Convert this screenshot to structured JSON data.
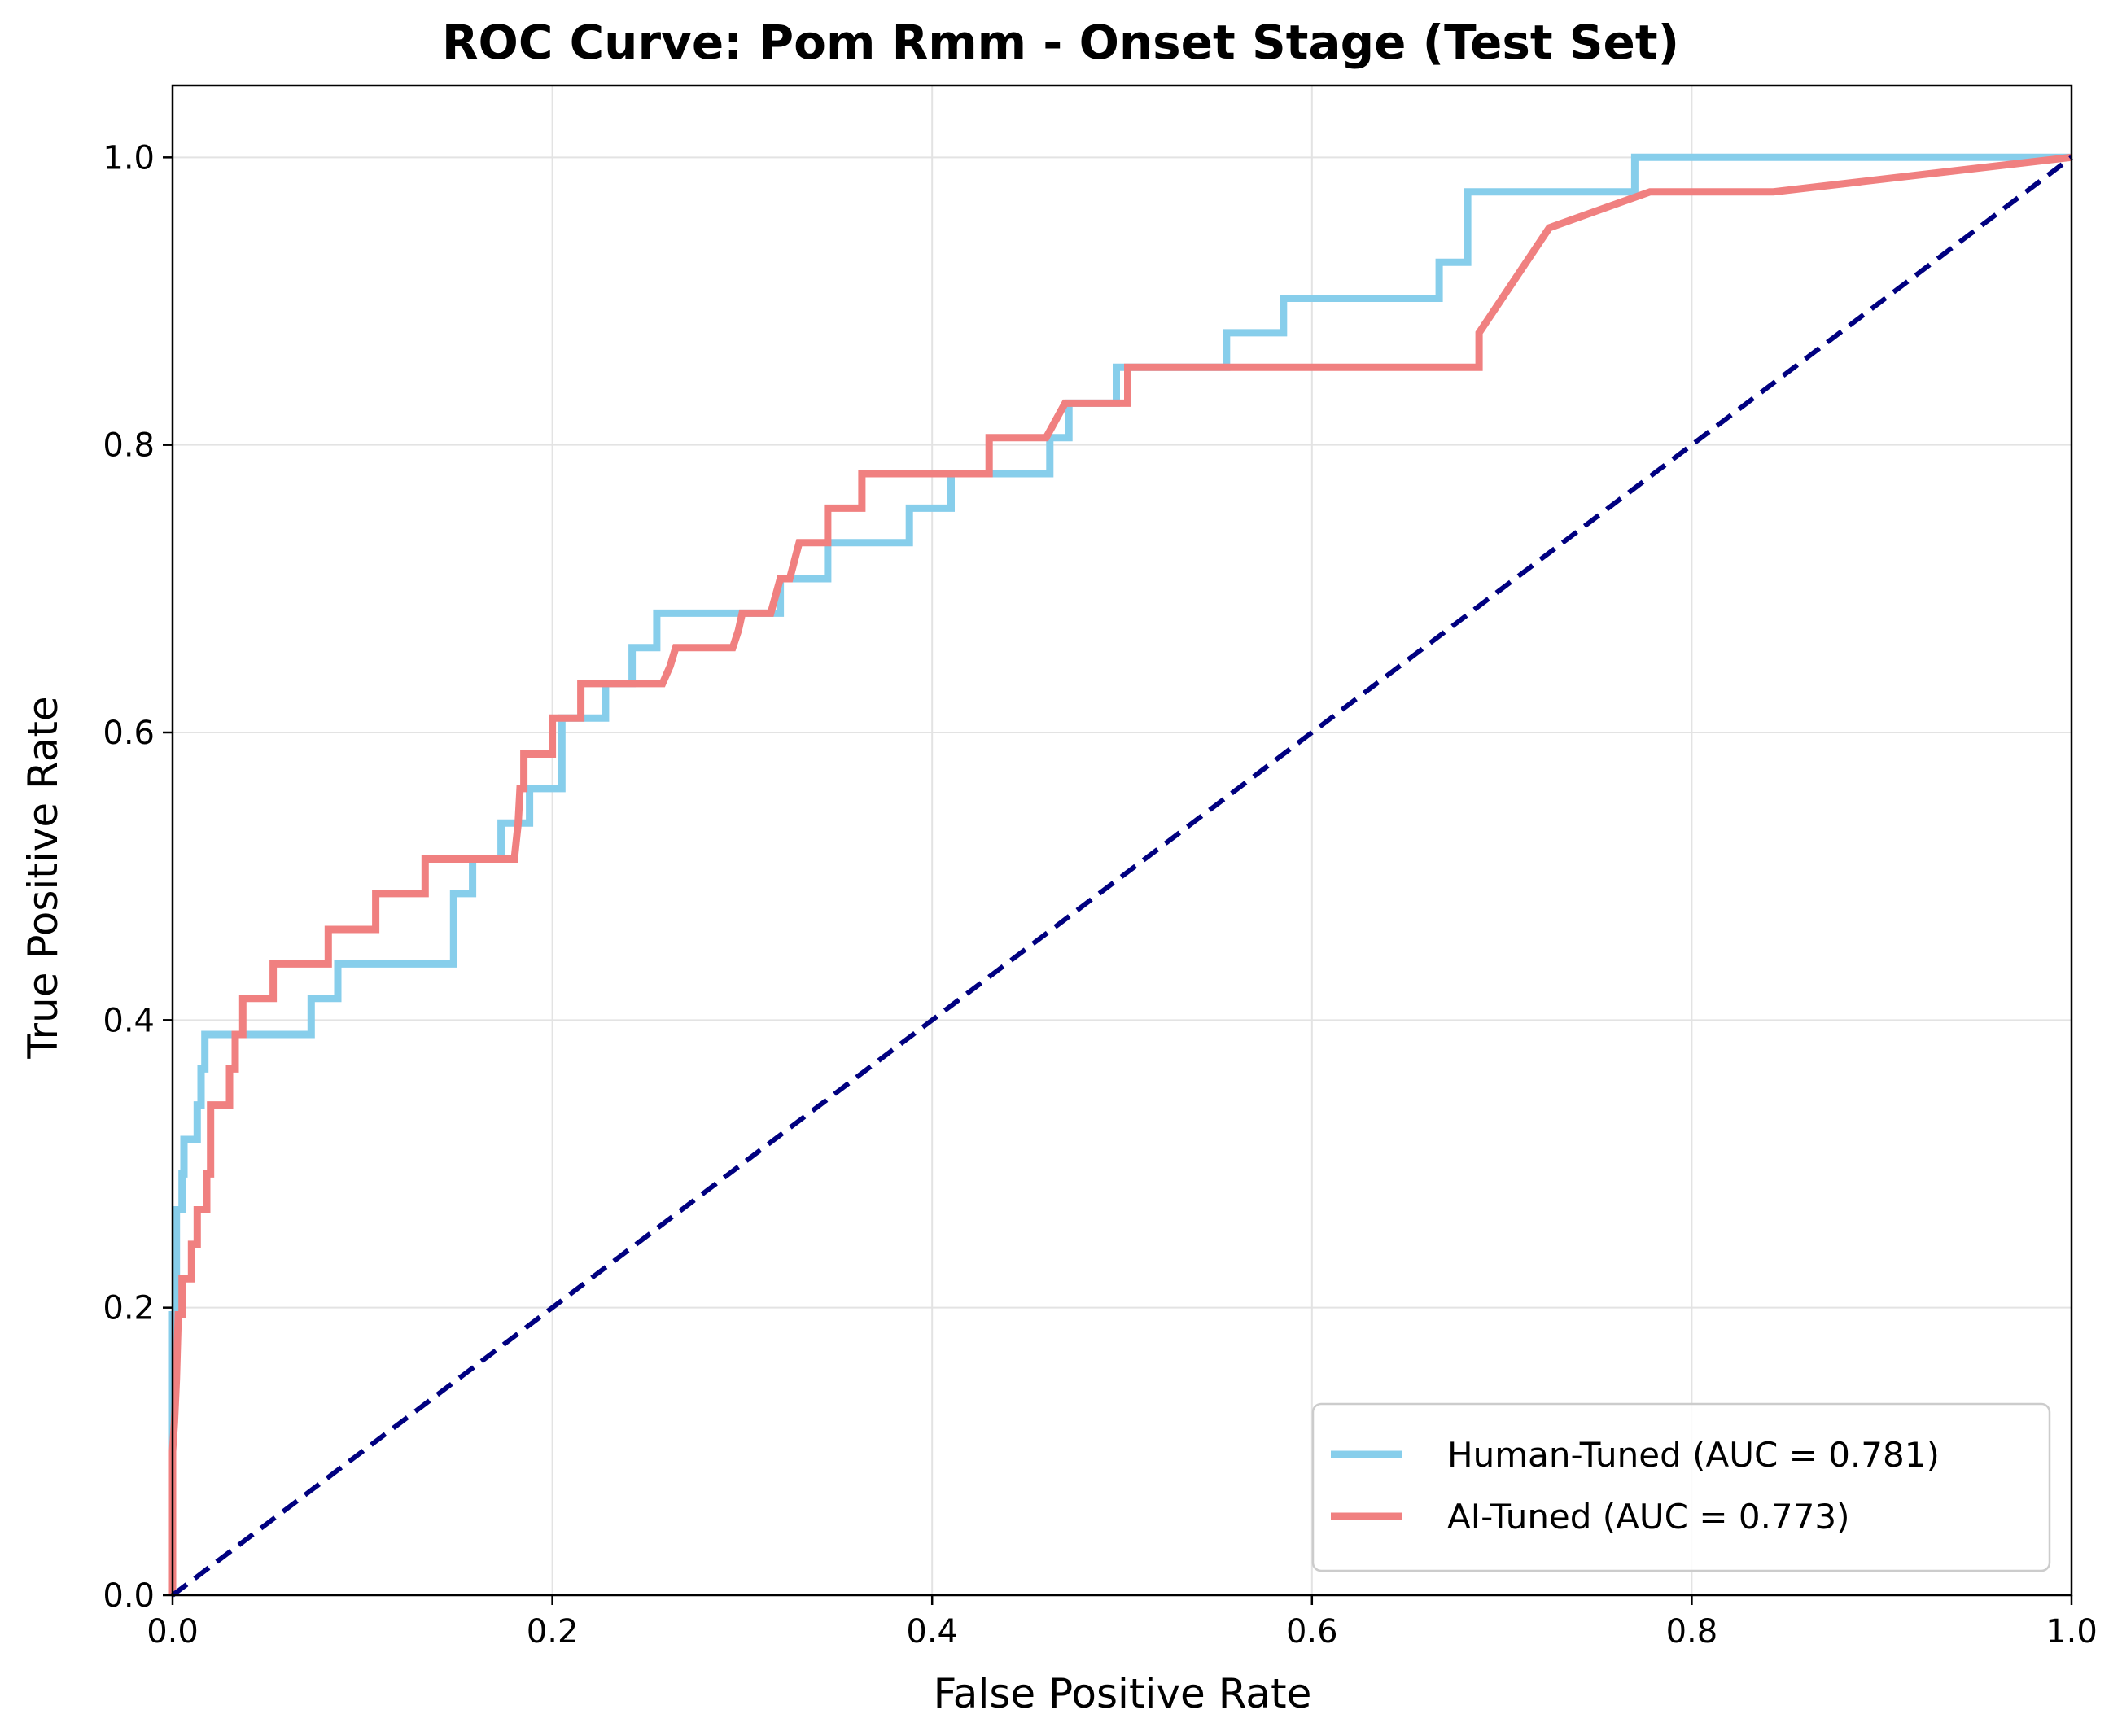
{
  "chart_data": {
    "type": "line",
    "title": "ROC Curve: Pom Rmm - Onset Stage (Test Set)",
    "xlabel": "False Positive Rate",
    "ylabel": "True Positive Rate",
    "xlim": [
      0.0,
      1.0
    ],
    "ylim": [
      0.0,
      1.05
    ],
    "xticks": [
      0.0,
      0.2,
      0.4,
      0.6,
      0.8,
      1.0
    ],
    "yticks": [
      0.0,
      0.2,
      0.4,
      0.6,
      0.8,
      1.0
    ],
    "xtick_labels": [
      "0.0",
      "0.2",
      "0.4",
      "0.6",
      "0.8",
      "1.0"
    ],
    "ytick_labels": [
      "0.0",
      "0.2",
      "0.4",
      "0.6",
      "0.8",
      "1.0"
    ],
    "grid": true,
    "legend_position": "bottom-right",
    "series": [
      {
        "name": "Human-Tuned (AUC = 0.781)",
        "color": "#87CEEB",
        "style": "solid",
        "points": [
          [
            0.0,
            0.0
          ],
          [
            0.0,
            0.195
          ],
          [
            0.002,
            0.195
          ],
          [
            0.002,
            0.268
          ],
          [
            0.005,
            0.268
          ],
          [
            0.005,
            0.293
          ],
          [
            0.006,
            0.293
          ],
          [
            0.006,
            0.317
          ],
          [
            0.013,
            0.317
          ],
          [
            0.013,
            0.341
          ],
          [
            0.015,
            0.341
          ],
          [
            0.015,
            0.366
          ],
          [
            0.017,
            0.366
          ],
          [
            0.017,
            0.39
          ],
          [
            0.073,
            0.39
          ],
          [
            0.073,
            0.415
          ],
          [
            0.087,
            0.415
          ],
          [
            0.087,
            0.439
          ],
          [
            0.148,
            0.439
          ],
          [
            0.148,
            0.488
          ],
          [
            0.158,
            0.488
          ],
          [
            0.158,
            0.512
          ],
          [
            0.173,
            0.512
          ],
          [
            0.173,
            0.537
          ],
          [
            0.188,
            0.537
          ],
          [
            0.188,
            0.561
          ],
          [
            0.205,
            0.561
          ],
          [
            0.205,
            0.61
          ],
          [
            0.228,
            0.61
          ],
          [
            0.228,
            0.634
          ],
          [
            0.242,
            0.634
          ],
          [
            0.242,
            0.659
          ],
          [
            0.255,
            0.659
          ],
          [
            0.255,
            0.683
          ],
          [
            0.32,
            0.683
          ],
          [
            0.32,
            0.707
          ],
          [
            0.345,
            0.707
          ],
          [
            0.345,
            0.732
          ],
          [
            0.388,
            0.732
          ],
          [
            0.388,
            0.756
          ],
          [
            0.41,
            0.756
          ],
          [
            0.41,
            0.78
          ],
          [
            0.462,
            0.78
          ],
          [
            0.462,
            0.805
          ],
          [
            0.472,
            0.805
          ],
          [
            0.472,
            0.829
          ],
          [
            0.497,
            0.829
          ],
          [
            0.497,
            0.854
          ],
          [
            0.555,
            0.854
          ],
          [
            0.555,
            0.878
          ],
          [
            0.585,
            0.878
          ],
          [
            0.585,
            0.902
          ],
          [
            0.667,
            0.902
          ],
          [
            0.667,
            0.927
          ],
          [
            0.682,
            0.927
          ],
          [
            0.682,
            0.976
          ],
          [
            0.77,
            0.976
          ],
          [
            0.77,
            1.0
          ],
          [
            1.0,
            1.0
          ]
        ]
      },
      {
        "name": "AI-Tuned (AUC = 0.773)",
        "color": "#F08080",
        "style": "solid",
        "points": [
          [
            0.0,
            0.0
          ],
          [
            0.0,
            0.1
          ],
          [
            0.001,
            0.12
          ],
          [
            0.002,
            0.15
          ],
          [
            0.003,
            0.195
          ],
          [
            0.005,
            0.195
          ],
          [
            0.005,
            0.22
          ],
          [
            0.01,
            0.22
          ],
          [
            0.01,
            0.244
          ],
          [
            0.013,
            0.244
          ],
          [
            0.013,
            0.268
          ],
          [
            0.018,
            0.268
          ],
          [
            0.018,
            0.293
          ],
          [
            0.02,
            0.293
          ],
          [
            0.02,
            0.341
          ],
          [
            0.03,
            0.341
          ],
          [
            0.03,
            0.366
          ],
          [
            0.033,
            0.366
          ],
          [
            0.033,
            0.39
          ],
          [
            0.037,
            0.39
          ],
          [
            0.037,
            0.415
          ],
          [
            0.053,
            0.415
          ],
          [
            0.053,
            0.439
          ],
          [
            0.082,
            0.439
          ],
          [
            0.082,
            0.463
          ],
          [
            0.107,
            0.463
          ],
          [
            0.107,
            0.488
          ],
          [
            0.133,
            0.488
          ],
          [
            0.133,
            0.512
          ],
          [
            0.18,
            0.512
          ],
          [
            0.182,
            0.537
          ],
          [
            0.183,
            0.561
          ],
          [
            0.185,
            0.561
          ],
          [
            0.185,
            0.585
          ],
          [
            0.2,
            0.585
          ],
          [
            0.2,
            0.61
          ],
          [
            0.215,
            0.61
          ],
          [
            0.215,
            0.634
          ],
          [
            0.258,
            0.634
          ],
          [
            0.262,
            0.646
          ],
          [
            0.265,
            0.659
          ],
          [
            0.295,
            0.659
          ],
          [
            0.298,
            0.671
          ],
          [
            0.3,
            0.683
          ],
          [
            0.315,
            0.683
          ],
          [
            0.32,
            0.707
          ],
          [
            0.325,
            0.707
          ],
          [
            0.33,
            0.732
          ],
          [
            0.345,
            0.732
          ],
          [
            0.345,
            0.756
          ],
          [
            0.363,
            0.756
          ],
          [
            0.363,
            0.78
          ],
          [
            0.43,
            0.78
          ],
          [
            0.43,
            0.805
          ],
          [
            0.46,
            0.805
          ],
          [
            0.47,
            0.829
          ],
          [
            0.503,
            0.829
          ],
          [
            0.503,
            0.854
          ],
          [
            0.688,
            0.854
          ],
          [
            0.688,
            0.878
          ],
          [
            0.725,
            0.951
          ],
          [
            0.778,
            0.976
          ],
          [
            0.843,
            0.976
          ],
          [
            1.0,
            1.0
          ]
        ]
      },
      {
        "name": "",
        "color": "#000080",
        "style": "dashed",
        "points": [
          [
            0.0,
            0.0
          ],
          [
            1.0,
            1.0
          ]
        ]
      }
    ]
  }
}
